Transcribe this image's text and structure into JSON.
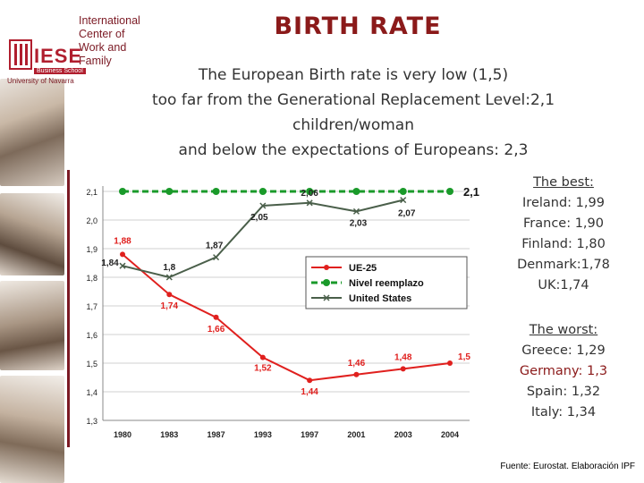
{
  "logo": {
    "lines": [
      "International",
      "Center of",
      "Work and",
      "Family"
    ],
    "brand": "IESE",
    "school": "Business School",
    "university": "University of Navarra"
  },
  "title": "BIRTH RATE",
  "subtitle": [
    "The European Birth rate is very low (1,5)",
    "too far from the Generational Replacement Level:2,1",
    "children/woman",
    "and below the expectations of Europeans: 2,3"
  ],
  "best": {
    "heading": "The best:",
    "items": [
      "Ireland: 1,99",
      "France: 1,90",
      "Finland: 1,80",
      "Denmark:1,78",
      "UK:1,74"
    ]
  },
  "worst": {
    "heading": "The worst:",
    "items": [
      "Greece: 1,29",
      "Germany: 1,3",
      "Spain: 1,32",
      "Italy: 1,34"
    ]
  },
  "source": "Fuente: Eurostat. Elaboración IPF",
  "colors": {
    "ue": "#e0201e",
    "replacement": "#1a9a2a",
    "us": "#4a5f4a",
    "title": "#8b1a1a"
  },
  "chart_data": {
    "type": "line",
    "categories": [
      "1980",
      "1983",
      "1987",
      "1993",
      "1997",
      "2001",
      "2003",
      "2004"
    ],
    "ylim": [
      1.3,
      2.1
    ],
    "yticks": [
      "1,3",
      "1,4",
      "1,5",
      "1,6",
      "1,7",
      "1,8",
      "1,9",
      "2,0",
      "2,1"
    ],
    "grid": true,
    "legend_position": "center-right",
    "series": [
      {
        "name": "UE-25",
        "values": [
          1.88,
          1.74,
          1.66,
          1.52,
          1.44,
          1.46,
          1.48,
          1.5
        ],
        "labels": [
          "1,88",
          "1,74",
          "1,66",
          "1,52",
          "1,44",
          "1,46",
          "1,48",
          "1,5"
        ]
      },
      {
        "name": "Nivel reemplazo",
        "values": [
          2.1,
          2.1,
          2.1,
          2.1,
          2.1,
          2.1,
          2.1,
          2.1
        ],
        "labels": [
          "",
          "",
          "",
          "",
          "",
          "",
          "",
          "2,1"
        ]
      },
      {
        "name": "United States",
        "values": [
          1.84,
          1.8,
          1.87,
          2.05,
          2.06,
          2.03,
          2.07,
          null
        ],
        "labels": [
          "1,84",
          "1,8",
          "1,87",
          "2,05",
          "2,06",
          "2,03",
          "2,07",
          ""
        ]
      }
    ]
  }
}
